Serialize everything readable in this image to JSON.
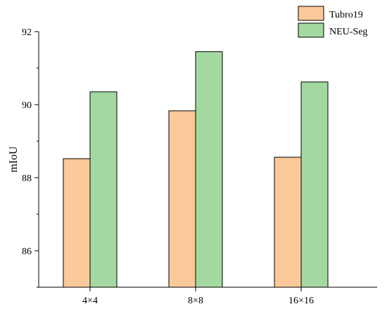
{
  "chart_data": {
    "type": "bar",
    "title": "",
    "xlabel": "",
    "ylabel": "mIoU",
    "categories": [
      "4×4",
      "8×8",
      "16×16"
    ],
    "series": [
      {
        "name": "Tubro19",
        "values": [
          88.52,
          89.83,
          88.56
        ],
        "color": "#fbc99a"
      },
      {
        "name": "NEU-Seg",
        "values": [
          90.35,
          91.45,
          90.62
        ],
        "color": "#a3d9a0"
      }
    ],
    "ylim": [
      85,
      92
    ],
    "yticks": [
      "86",
      "88",
      "90",
      "92"
    ],
    "grid": false,
    "legend": "top-right"
  }
}
